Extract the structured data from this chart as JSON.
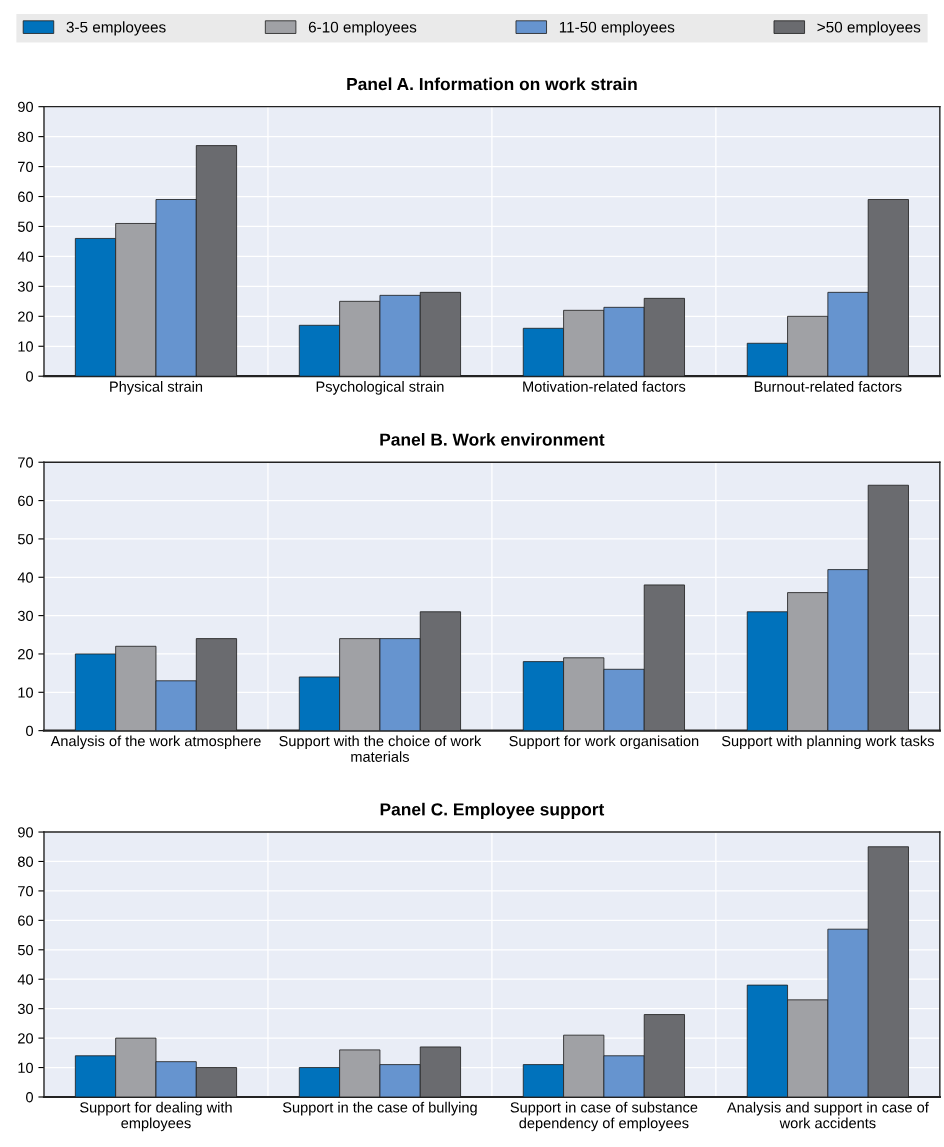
{
  "chart_data": [
    {
      "type": "bar",
      "title": "Panel A. Information on work strain",
      "categories": [
        "Physical strain",
        "Psychological strain",
        "Motivation-related factors",
        "Burnout-related factors"
      ],
      "series": [
        {
          "name": "3-5 employees",
          "color": "#0072bc",
          "values": [
            46,
            17,
            16,
            11
          ]
        },
        {
          "name": "6-10 employees",
          "color": "#a0a1a5",
          "values": [
            51,
            25,
            22,
            20
          ]
        },
        {
          "name": "11-50 employees",
          "color": "#6694cf",
          "values": [
            59,
            27,
            23,
            28
          ]
        },
        {
          "name": ">50 employees",
          "color": "#6a6b6f",
          "values": [
            77,
            28,
            26,
            59
          ]
        }
      ],
      "ylim": [
        0,
        90
      ],
      "yticks": [
        0,
        10,
        20,
        30,
        40,
        50,
        60,
        70,
        80,
        90
      ],
      "grid": true,
      "legend": "top"
    },
    {
      "type": "bar",
      "title": "Panel B. Work environment",
      "categories": [
        "Analysis of the work atmosphere",
        "Support with the choice of work materials",
        "Support for work organisation",
        "Support with planning work tasks"
      ],
      "series": [
        {
          "color": "#0072bc",
          "values": [
            20,
            14,
            18,
            31
          ]
        },
        {
          "color": "#a0a1a5",
          "values": [
            22,
            24,
            19,
            36
          ]
        },
        {
          "color": "#6694cf",
          "values": [
            13,
            24,
            16,
            42
          ]
        },
        {
          "color": "#6a6b6f",
          "values": [
            24,
            31,
            38,
            64
          ]
        }
      ],
      "ylim": [
        0,
        70
      ],
      "yticks": [
        0,
        10,
        20,
        30,
        40,
        50,
        60,
        70
      ],
      "grid": true
    },
    {
      "type": "bar",
      "title": "Panel C. Employee support",
      "categories": [
        "Support for dealing with employees",
        "Support in the case of bullying",
        "Support in case of substance dependency of employees",
        "Analysis and support in case of work accidents"
      ],
      "series": [
        {
          "color": "#0072bc",
          "values": [
            14,
            10,
            11,
            38
          ]
        },
        {
          "color": "#a0a1a5",
          "values": [
            20,
            16,
            21,
            33
          ]
        },
        {
          "color": "#6694cf",
          "values": [
            12,
            11,
            14,
            57
          ]
        },
        {
          "color": "#6a6b6f",
          "values": [
            10,
            17,
            28,
            85
          ]
        }
      ],
      "ylim": [
        0,
        90
      ],
      "yticks": [
        0,
        10,
        20,
        30,
        40,
        50,
        60,
        70,
        80,
        90
      ],
      "grid": true
    }
  ]
}
